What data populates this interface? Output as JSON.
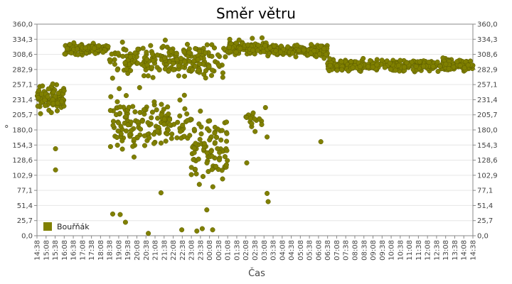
{
  "chart_data": {
    "type": "scatter",
    "title": "Směr větru",
    "xlabel": "Čas",
    "ylabel": "°",
    "ylim": [
      0,
      360
    ],
    "y_ticks": [
      "0,0",
      "25,7",
      "51,4",
      "77,1",
      "102,9",
      "128,6",
      "154,3",
      "180,0",
      "205,7",
      "231,4",
      "257,1",
      "282,9",
      "308,6",
      "334,3",
      "360,0"
    ],
    "x_ticks": [
      "14:38",
      "15:08",
      "15:38",
      "16:08",
      "16:38",
      "17:08",
      "17:38",
      "18:08",
      "18:38",
      "19:08",
      "19:38",
      "20:08",
      "20:38",
      "21:08",
      "21:38",
      "22:08",
      "22:38",
      "23:08",
      "23:38",
      "00:08",
      "00:38",
      "01:08",
      "01:38",
      "02:08",
      "02:38",
      "03:08",
      "03:38",
      "04:08",
      "04:38",
      "05:08",
      "05:38",
      "06:08",
      "06:38",
      "07:08",
      "07:38",
      "08:08",
      "08:38",
      "09:08",
      "09:38",
      "10:08",
      "10:38",
      "11:08",
      "11:38",
      "12:08",
      "12:38",
      "13:08",
      "13:38",
      "14:08",
      "14:38"
    ],
    "grid": true,
    "legend_position": "bottom-left",
    "series": [
      {
        "name": "Bouřňák",
        "color": "#808000",
        "segments": [
          {
            "t0": 0.0,
            "t1": 1.5,
            "y": 235,
            "spread": 35,
            "n": 90
          },
          {
            "t0": 1.5,
            "t1": 4.0,
            "y": 318,
            "spread": 14,
            "n": 110
          },
          {
            "t0": 4.0,
            "t1": 8.5,
            "y": 300,
            "spread": 45,
            "n": 160
          },
          {
            "t0": 4.0,
            "t1": 8.5,
            "y": 190,
            "spread": 80,
            "n": 150
          },
          {
            "t0": 8.5,
            "t1": 10.5,
            "y": 295,
            "spread": 50,
            "n": 60
          },
          {
            "t0": 8.5,
            "t1": 10.5,
            "y": 150,
            "spread": 90,
            "n": 90
          },
          {
            "t0": 10.5,
            "t1": 13.0,
            "y": 320,
            "spread": 20,
            "n": 130
          },
          {
            "t0": 11.5,
            "t1": 12.5,
            "y": 200,
            "spread": 40,
            "n": 15
          },
          {
            "t0": 13.0,
            "t1": 16.0,
            "y": 315,
            "spread": 15,
            "n": 170
          },
          {
            "t0": 16.0,
            "t1": 24.0,
            "y": 290,
            "spread": 15,
            "n": 420
          }
        ],
        "points": [
          [
            1.02,
            112
          ],
          [
            1.02,
            148
          ],
          [
            4.17,
            37
          ],
          [
            4.58,
            36
          ],
          [
            4.87,
            23
          ],
          [
            6.13,
            4
          ],
          [
            6.83,
            73
          ],
          [
            7.97,
            10
          ],
          [
            8.8,
            8
          ],
          [
            9.1,
            12
          ],
          [
            9.35,
            44
          ],
          [
            9.67,
            10
          ],
          [
            11.55,
            124
          ],
          [
            12.58,
            218
          ],
          [
            12.67,
            168
          ],
          [
            12.73,
            58
          ],
          [
            12.67,
            72
          ],
          [
            15.63,
            160
          ]
        ]
      }
    ]
  }
}
